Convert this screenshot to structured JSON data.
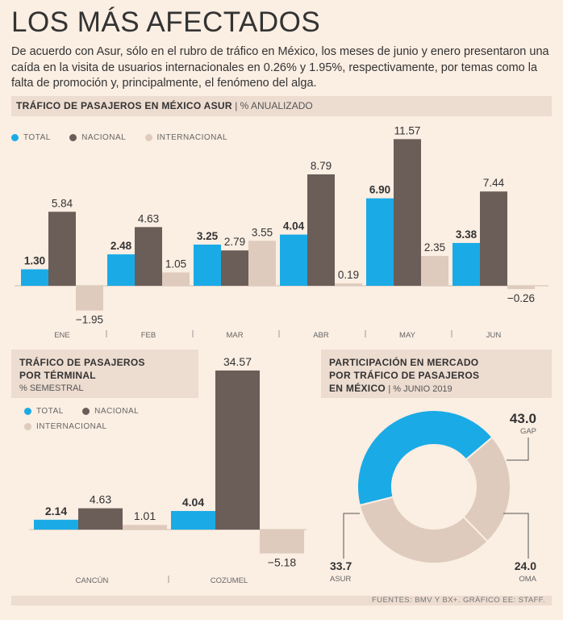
{
  "title": "LOS MÁS AFECTADOS",
  "intro": "De acuerdo con Asur, sólo en el rubro de tráfico en México, los meses de junio y enero presentaron una caída en la visita de usuarios internacionales en 0.26% y 1.95%, respectivamente, por temas como la falta de promoción y, principalmente, el fenómeno del alga.",
  "colors": {
    "total": "#1aabe6",
    "nacional": "#6b5e58",
    "internacional": "#dfcbbd"
  },
  "legend": {
    "total": "TOTAL",
    "nacional": "NACIONAL",
    "internacional": "INTERNACIONAL"
  },
  "monthly": {
    "title_bold": "TRÁFICO DE PASAJEROS EN MÉXICO ASUR",
    "title_light": "| % ANUALIZADO"
  },
  "terminal": {
    "title_line1": "TRÁFICO DE PASAJEROS",
    "title_line2": "POR TÉRMINAL",
    "subtitle": "% SEMESTRAL"
  },
  "market": {
    "title_line1": "PARTICIPACIÓN EN MERCADO",
    "title_line2": "POR TRÁFICO DE PASAJEROS",
    "title_line3": "EN MÉXICO",
    "subtitle": "| % JUNIO 2019"
  },
  "footer": "FUENTES: BMV Y BX+. GRÁFICO EE: STAFF.",
  "chart_data": [
    {
      "type": "bar",
      "title": "TRÁFICO DE PASAJEROS EN MÉXICO ASUR | % ANUALIZADO",
      "categories": [
        "ENE",
        "FEB",
        "MAR",
        "ABR",
        "MAY",
        "JUN"
      ],
      "series": [
        {
          "name": "TOTAL",
          "values": [
            1.3,
            2.48,
            3.25,
            4.04,
            6.9,
            3.38
          ],
          "labels": [
            "1.30",
            "2.48",
            "3.25",
            "4.04",
            "6.90",
            "3.38"
          ]
        },
        {
          "name": "NACIONAL",
          "values": [
            5.84,
            4.63,
            2.79,
            8.79,
            11.57,
            7.44
          ],
          "labels": [
            "5.84",
            "4.63",
            "2.79",
            "8.79",
            "11.57",
            "7.44"
          ]
        },
        {
          "name": "INTERNACIONAL",
          "values": [
            -1.95,
            1.05,
            3.55,
            0.19,
            2.35,
            -0.26
          ],
          "labels": [
            "-1.95",
            "1.05",
            "3.55",
            "0.19",
            "2.35",
            "-0.26"
          ]
        }
      ],
      "ylim": [
        -1.95,
        11.57
      ],
      "legend_position": "top-left"
    },
    {
      "type": "bar",
      "title": "TRÁFICO DE PASAJEROS POR TÉRMINAL % SEMESTRAL",
      "categories": [
        "CANCÚN",
        "COZUMEL"
      ],
      "series": [
        {
          "name": "TOTAL",
          "values": [
            2.14,
            4.04
          ],
          "labels": [
            "2.14",
            "4.04"
          ]
        },
        {
          "name": "NACIONAL",
          "values": [
            4.63,
            34.57
          ],
          "labels": [
            "4.63",
            "34.57"
          ]
        },
        {
          "name": "INTERNACIONAL",
          "values": [
            1.01,
            -5.18
          ],
          "labels": [
            "1.01",
            "-5.18"
          ]
        }
      ],
      "ylim": [
        -5.18,
        34.57
      ],
      "legend_position": "top-left"
    },
    {
      "type": "pie",
      "title": "PARTICIPACIÓN EN MERCADO POR TRÁFICO DE PASAJEROS EN MÉXICO | % JUNIO 2019",
      "slices": [
        {
          "name": "GAP",
          "value": 43.0,
          "label": "43.0"
        },
        {
          "name": "OMA",
          "value": 24.0,
          "label": "24.0"
        },
        {
          "name": "ASUR",
          "value": 33.7,
          "label": "33.7"
        }
      ]
    }
  ]
}
